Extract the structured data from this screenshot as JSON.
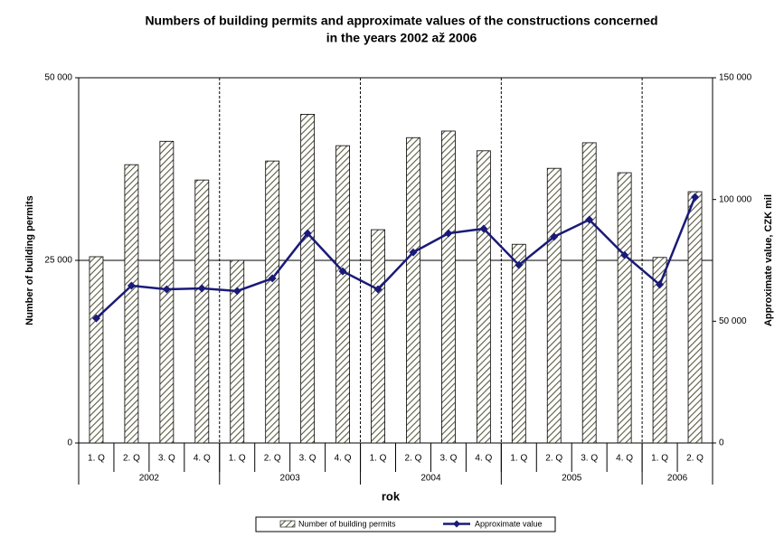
{
  "chart_data": {
    "type": "bar_line",
    "title": [
      "Numbers of building permits and approximate values of the constructions concerned",
      "in  the years 2002 až 2006"
    ],
    "x_label": "rok",
    "y_label": "Number of building permits",
    "y2_label": "Approximate value, CZK mil",
    "categories": [
      "1. Q",
      "2. Q",
      "3. Q",
      "4. Q",
      "1. Q",
      "2. Q",
      "3. Q",
      "4. Q",
      "1. Q",
      "2. Q",
      "3. Q",
      "4. Q",
      "1. Q",
      "2. Q",
      "3. Q",
      "4. Q",
      "1. Q",
      "2. Q"
    ],
    "x_groups": [
      {
        "name": "2002",
        "count": 4
      },
      {
        "name": "2003",
        "count": 4
      },
      {
        "name": "2004",
        "count": 4
      },
      {
        "name": "2005",
        "count": 4
      },
      {
        "name": "2006",
        "count": 2
      }
    ],
    "series": [
      {
        "name": "Number of building permits",
        "kind": "bar",
        "axis": "y",
        "color": "#5a5a40",
        "values": [
          25500,
          38100,
          41300,
          36000,
          25000,
          38600,
          45000,
          40700,
          29200,
          41800,
          42700,
          40000,
          27200,
          37600,
          41100,
          37000,
          25400,
          34400
        ]
      },
      {
        "name": "Approximate value",
        "kind": "line",
        "axis": "y2",
        "color": "#1a1a78",
        "values": [
          51200,
          64600,
          63100,
          63500,
          62400,
          67600,
          86100,
          70500,
          63100,
          78300,
          86100,
          88000,
          73100,
          84700,
          91700,
          77200,
          65000,
          101000
        ]
      }
    ],
    "ylim": [
      0,
      50000
    ],
    "yticks": [
      0,
      {
        "value": 25000,
        "label": "25 000"
      },
      {
        "value": 50000,
        "label": "50 000"
      }
    ],
    "y2lim": [
      0,
      150000
    ],
    "y2ticks": [
      0,
      {
        "value": 50000,
        "label": "50 000"
      },
      {
        "value": 100000,
        "label": "100 000"
      },
      {
        "value": 150000,
        "label": "150 000"
      }
    ],
    "grid": true
  }
}
